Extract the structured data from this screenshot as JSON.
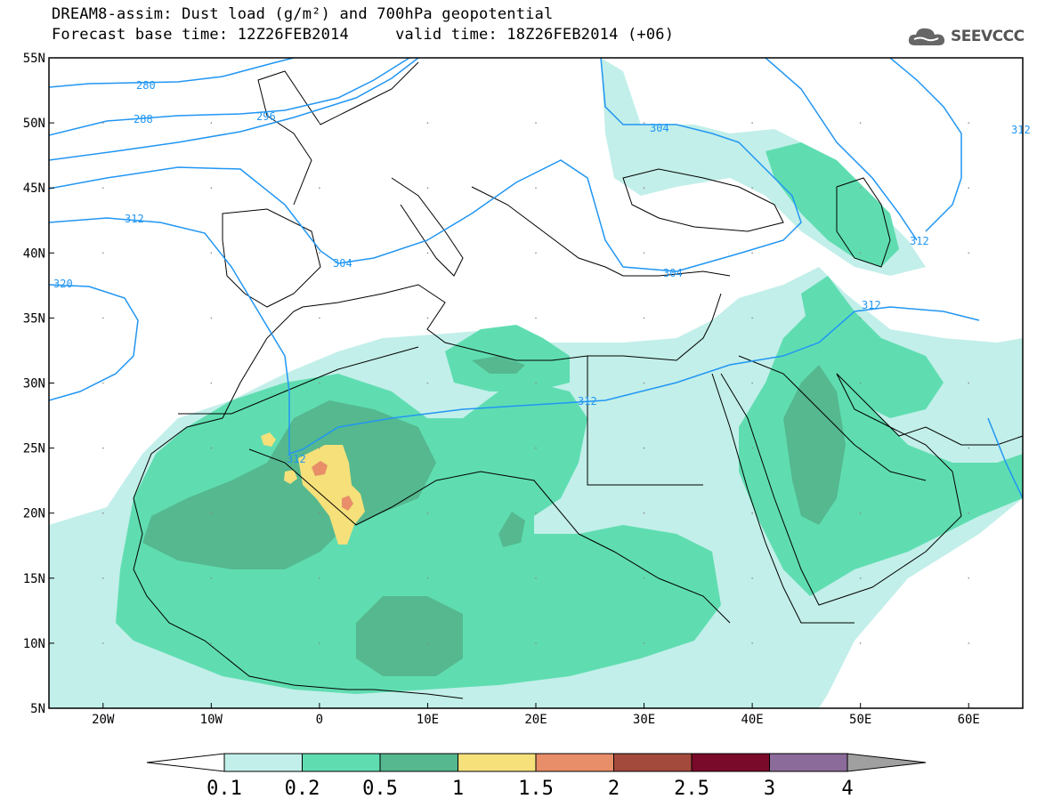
{
  "title": {
    "line1": "DREAM8-assim: Dust load (g/m²) and 700hPa geopotential",
    "line2": "Forecast base time: 12Z26FEB2014     valid time: 18Z26FEB2014 (+06)"
  },
  "logo": {
    "text": "SEEVCCC",
    "icon": "cloud-icon"
  },
  "map": {
    "lat_ticks": [
      "55N",
      "50N",
      "45N",
      "40N",
      "35N",
      "30N",
      "25N",
      "20N",
      "15N",
      "10N",
      "5N"
    ],
    "lon_ticks": [
      "20W",
      "10W",
      "0",
      "10E",
      "20E",
      "30E",
      "40E",
      "50E",
      "60E"
    ],
    "extent": {
      "lon_min": -25,
      "lon_max": 65,
      "lat_min": 5,
      "lat_max": 55
    },
    "contour_labels": [
      "280",
      "288",
      "296",
      "304",
      "312",
      "320",
      "304",
      "304",
      "312",
      "312",
      "312",
      "312",
      "312"
    ]
  },
  "colorbar": {
    "labels": [
      "0.1",
      "0.2",
      "0.5",
      "1",
      "1.5",
      "2",
      "2.5",
      "3",
      "4"
    ],
    "colors": [
      "#c2efe9",
      "#5fddb1",
      "#55b88f",
      "#f5e07a",
      "#e88e68",
      "#a44a3c",
      "#7a0a2a",
      "#8b6b9a",
      "#a0a0a0"
    ]
  },
  "colors": {
    "level1": "#c2efe9",
    "level2": "#5fddb1",
    "level3": "#55b88f",
    "level4": "#f5e07a",
    "level5": "#e88e68",
    "contour": "#2196f3"
  }
}
